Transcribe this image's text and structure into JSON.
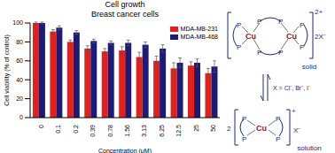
{
  "chart_data": {
    "type": "bar",
    "title": "Cell growth",
    "subtitle": "Breast cancer cells",
    "x_label": "Concentration (μM)",
    "y_label": "Cell viability (% of control)",
    "categories": [
      "0",
      "0.1",
      "0.2",
      "0.39",
      "0.78",
      "1.56",
      "3.13",
      "6.25",
      "12.5",
      "25",
      "50"
    ],
    "series": [
      {
        "name": "MDA-MB-231",
        "color": "#e3201b",
        "values": [
          100,
          91,
          80,
          73,
          70,
          71,
          64,
          60,
          52,
          55,
          47
        ],
        "errors": [
          1,
          2,
          2,
          3,
          3,
          4,
          5,
          5,
          6,
          4,
          5
        ]
      },
      {
        "name": "MDA-MB-468",
        "color": "#1c1c78",
        "values": [
          100,
          95,
          90,
          81,
          79,
          79,
          77,
          73,
          58,
          58,
          54
        ],
        "errors": [
          1,
          2,
          2,
          2,
          2,
          3,
          3,
          4,
          5,
          4,
          6
        ]
      }
    ],
    "ylim": [
      0,
      100
    ],
    "yticks": [
      0,
      20,
      40,
      60,
      80,
      100
    ],
    "grid": false,
    "legend": "upper right",
    "annotations": [
      "2+",
      "2X⁻",
      "solid",
      "X = Cl⁻, Br⁻, I⁻",
      "2",
      "+",
      "X⁻",
      "solution",
      "Cu",
      "P"
    ]
  }
}
